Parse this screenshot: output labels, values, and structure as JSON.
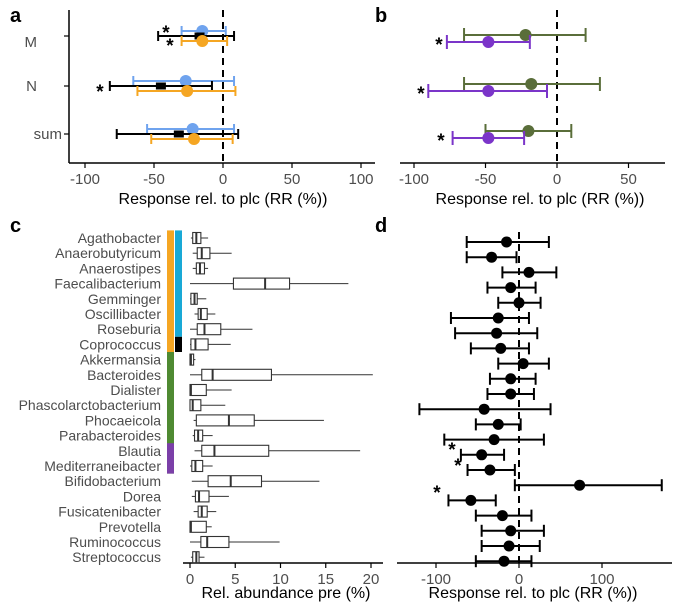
{
  "colors": {
    "blue": "#6fa3ee",
    "orange": "#f5a623",
    "black": "#000000",
    "olive": "#5a6e3a",
    "purple": "#7b35c9",
    "cyan": "#19a9d6",
    "green": "#4f8a32",
    "violet": "#7b3fa8"
  },
  "chart_data": [
    {
      "panel": "a",
      "type": "forest",
      "xlabel": "Response rel. to plc (RR (%))",
      "xlim": [
        -110,
        110
      ],
      "xticks": [
        "-100",
        "-50",
        "0",
        "50",
        "100"
      ],
      "categories": [
        "M",
        "N",
        "sum"
      ],
      "series": [
        {
          "name": "blue",
          "color": "#6fa3ee",
          "points": [
            {
              "cat": "M",
              "est": -15,
              "lo": -30,
              "hi": 2
            },
            {
              "cat": "N",
              "est": -27,
              "lo": -65,
              "hi": 8
            },
            {
              "cat": "sum",
              "est": -22,
              "lo": -55,
              "hi": 8
            }
          ]
        },
        {
          "name": "black",
          "color": "#000000",
          "points": [
            {
              "cat": "M",
              "est": -17,
              "lo": -47,
              "hi": 8
            },
            {
              "cat": "N",
              "est": -45,
              "lo": -82,
              "hi": -8
            },
            {
              "cat": "sum",
              "est": -32,
              "lo": -77,
              "hi": 11
            }
          ]
        },
        {
          "name": "orange",
          "color": "#f5a623",
          "points": [
            {
              "cat": "M",
              "est": -15,
              "lo": -30,
              "hi": 3
            },
            {
              "cat": "N",
              "est": -26,
              "lo": -62,
              "hi": 9
            },
            {
              "cat": "sum",
              "est": -21,
              "lo": -52,
              "hi": 7
            }
          ]
        }
      ],
      "annotations": [
        "*",
        "*",
        "*"
      ]
    },
    {
      "panel": "b",
      "type": "forest",
      "xlabel": "Response rel. to plc (RR (%))",
      "xlim": [
        -110,
        80
      ],
      "xticks": [
        "-100",
        "-50",
        "0",
        "50"
      ],
      "categories": [
        "M",
        "N",
        "sum"
      ],
      "series": [
        {
          "name": "olive",
          "color": "#5a6e3a",
          "points": [
            {
              "cat": "M",
              "est": -22,
              "lo": -65,
              "hi": 20
            },
            {
              "cat": "N",
              "est": -18,
              "lo": -65,
              "hi": 30
            },
            {
              "cat": "sum",
              "est": -20,
              "lo": -50,
              "hi": 10
            }
          ]
        },
        {
          "name": "purple",
          "color": "#7b35c9",
          "points": [
            {
              "cat": "M",
              "est": -48,
              "lo": -77,
              "hi": -19
            },
            {
              "cat": "N",
              "est": -48,
              "lo": -90,
              "hi": -7
            },
            {
              "cat": "sum",
              "est": -48,
              "lo": -73,
              "hi": -23
            }
          ]
        }
      ],
      "annotations": [
        "*",
        "*",
        "*"
      ]
    },
    {
      "panel": "c",
      "type": "boxplot",
      "xlabel": "Rel. abundance pre (%)",
      "xlim": [
        -1,
        21
      ],
      "xticks": [
        "0",
        "5",
        "10",
        "15",
        "20"
      ],
      "taxa": [
        "Agathobacter",
        "Anaerobutyricum",
        "Anaerostipes",
        "Faecalibacterium",
        "Gemminger",
        "Oscillibacter",
        "Roseburia",
        "Coprococcus",
        "Akkermansia",
        "Bacteroides",
        "Dialister",
        "Phascolarctobacterium",
        "Phocaeicola",
        "Parabacteroides",
        "Blautia",
        "Mediterraneibacter",
        "Bifidobacterium",
        "Dorea",
        "Fusicatenibacter",
        "Prevotella",
        "Ruminococcus",
        "Streptococcus"
      ],
      "boxes": [
        {
          "min": 0.1,
          "q1": 0.3,
          "med": 0.7,
          "q3": 1.2,
          "max": 2.0
        },
        {
          "min": 0.3,
          "q1": 0.8,
          "med": 1.3,
          "q3": 2.2,
          "max": 4.6
        },
        {
          "min": 0.3,
          "q1": 0.7,
          "med": 1.1,
          "q3": 1.6,
          "max": 2.0
        },
        {
          "min": 0.0,
          "q1": 4.8,
          "med": 8.3,
          "q3": 11.0,
          "max": 17.5
        },
        {
          "min": 0.0,
          "q1": 0.1,
          "med": 0.5,
          "q3": 0.8,
          "max": 1.8
        },
        {
          "min": 0.5,
          "q1": 0.9,
          "med": 1.2,
          "q3": 1.9,
          "max": 2.8
        },
        {
          "min": 0.0,
          "q1": 0.8,
          "med": 1.6,
          "q3": 3.4,
          "max": 6.9
        },
        {
          "min": 0.0,
          "q1": 0.1,
          "med": 0.6,
          "q3": 2.0,
          "max": 4.5
        },
        {
          "min": 0.0,
          "q1": 0.0,
          "med": 0.1,
          "q3": 0.4,
          "max": 0.6
        },
        {
          "min": 0.0,
          "q1": 1.3,
          "med": 2.5,
          "q3": 9.0,
          "max": 20.2
        },
        {
          "min": 0.0,
          "q1": 0.0,
          "med": 0.1,
          "q3": 1.8,
          "max": 4.6
        },
        {
          "min": 0.0,
          "q1": 0.0,
          "med": 0.3,
          "q3": 1.2,
          "max": 3.9
        },
        {
          "min": 0.4,
          "q1": 0.7,
          "med": 4.3,
          "q3": 7.1,
          "max": 14.8
        },
        {
          "min": 0.3,
          "q1": 0.5,
          "med": 0.9,
          "q3": 1.4,
          "max": 2.5
        },
        {
          "min": 0.5,
          "q1": 1.3,
          "med": 2.7,
          "q3": 8.7,
          "max": 18.8
        },
        {
          "min": 0.0,
          "q1": 0.2,
          "med": 0.6,
          "q3": 1.4,
          "max": 2.5
        },
        {
          "min": 0.2,
          "q1": 2.0,
          "med": 4.5,
          "q3": 7.9,
          "max": 14.3
        },
        {
          "min": 0.2,
          "q1": 0.6,
          "med": 1.0,
          "q3": 2.1,
          "max": 4.3
        },
        {
          "min": 0.4,
          "q1": 0.9,
          "med": 1.3,
          "q3": 1.9,
          "max": 2.9
        },
        {
          "min": 0.0,
          "q1": 0.0,
          "med": 0.1,
          "q3": 1.8,
          "max": 2.4
        },
        {
          "min": 0.0,
          "q1": 1.2,
          "med": 1.9,
          "q3": 4.3,
          "max": 9.9
        },
        {
          "min": 0.1,
          "q1": 0.3,
          "med": 0.7,
          "q3": 1.0,
          "max": 1.6
        }
      ],
      "groups": [
        {
          "color": "#f5a623",
          "from": 0,
          "to": 7
        },
        {
          "color": "#19a9d6",
          "from": 0,
          "to": 6
        },
        {
          "color": "#000000",
          "from": 7,
          "to": 7
        },
        {
          "color": "#4f8a32",
          "from": 8,
          "to": 15
        },
        {
          "color": "#7b3fa8",
          "from": 14,
          "to": 15
        }
      ]
    },
    {
      "panel": "d",
      "type": "forest",
      "xlabel": "Response rel. to plc (RR (%))",
      "xlim": [
        -120,
        185
      ],
      "xticks": [
        "-100",
        "0",
        "100"
      ],
      "points": [
        {
          "est": -15,
          "lo": -63,
          "hi": 36
        },
        {
          "est": -33,
          "lo": -63,
          "hi": -3
        },
        {
          "est": 12,
          "lo": -20,
          "hi": 45
        },
        {
          "est": -10,
          "lo": -38,
          "hi": 20
        },
        {
          "est": 0,
          "lo": -25,
          "hi": 26
        },
        {
          "est": -25,
          "lo": -82,
          "hi": 12
        },
        {
          "est": -27,
          "lo": -77,
          "hi": 22
        },
        {
          "est": -22,
          "lo": -58,
          "hi": 12
        },
        {
          "est": 5,
          "lo": -25,
          "hi": 36
        },
        {
          "est": -10,
          "lo": -35,
          "hi": 20
        },
        {
          "est": -10,
          "lo": -38,
          "hi": 18
        },
        {
          "est": -42,
          "lo": -120,
          "hi": 38
        },
        {
          "est": -25,
          "lo": -52,
          "hi": 2
        },
        {
          "est": -30,
          "lo": -90,
          "hi": 30
        },
        {
          "est": -45,
          "lo": -70,
          "hi": -18
        },
        {
          "est": -35,
          "lo": -62,
          "hi": -5
        },
        {
          "est": 73,
          "lo": -5,
          "hi": 172
        },
        {
          "est": -58,
          "lo": -85,
          "hi": -28
        },
        {
          "est": -20,
          "lo": -52,
          "hi": 15
        },
        {
          "est": -10,
          "lo": -45,
          "hi": 30
        },
        {
          "est": -12,
          "lo": -45,
          "hi": 25
        },
        {
          "est": -18,
          "lo": -52,
          "hi": 15
        }
      ],
      "annotations": [
        "*",
        "*",
        "*"
      ]
    }
  ]
}
